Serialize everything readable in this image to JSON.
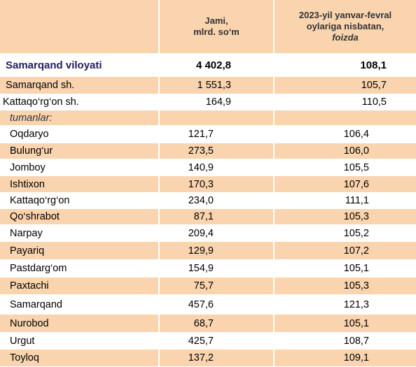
{
  "header": {
    "col2": [
      "Jami,",
      "mlrd. so‘m"
    ],
    "col3": [
      "2023-yil yanvar-fevral",
      "oylariga nisbatan,",
      "foizda"
    ]
  },
  "table": {
    "rows": [
      [
        "Samarqand viloyati",
        "4 402,8",
        "108,1"
      ],
      [
        "Samarqand sh.",
        "1 551,3",
        "105,7"
      ],
      [
        "Kattaqo‘rg‘on sh.",
        "164,9",
        "110,5"
      ],
      [
        "tumanlar:"
      ],
      [
        "Oqdaryo",
        "121,7",
        "106,4"
      ],
      [
        "Bulung‘ur",
        "273,5",
        "106,0"
      ],
      [
        "Jomboy",
        "140,9",
        "105,5"
      ],
      [
        "Ishtixon",
        "170,3",
        "107,6"
      ],
      [
        "Kattaqo‘rg‘on",
        "234,0",
        "111,1"
      ],
      [
        "Qo‘shrabot",
        "87,1",
        "105,3"
      ],
      [
        "Narpay",
        "209,4",
        "105,2"
      ],
      [
        "Payariq",
        "129,9",
        "107,2"
      ],
      [
        "Pastdarg‘om",
        "154,9",
        "105,1"
      ],
      [
        "Paxtachi",
        "75,7",
        "105,3"
      ],
      [
        "Samarqand",
        "457,6",
        "121,3"
      ],
      [
        "Nurobod",
        "68,7",
        "105,1"
      ],
      [
        "Urgut",
        "425,7",
        "108,7"
      ],
      [
        "Toyloq",
        "137,2",
        "109,1"
      ]
    ]
  }
}
